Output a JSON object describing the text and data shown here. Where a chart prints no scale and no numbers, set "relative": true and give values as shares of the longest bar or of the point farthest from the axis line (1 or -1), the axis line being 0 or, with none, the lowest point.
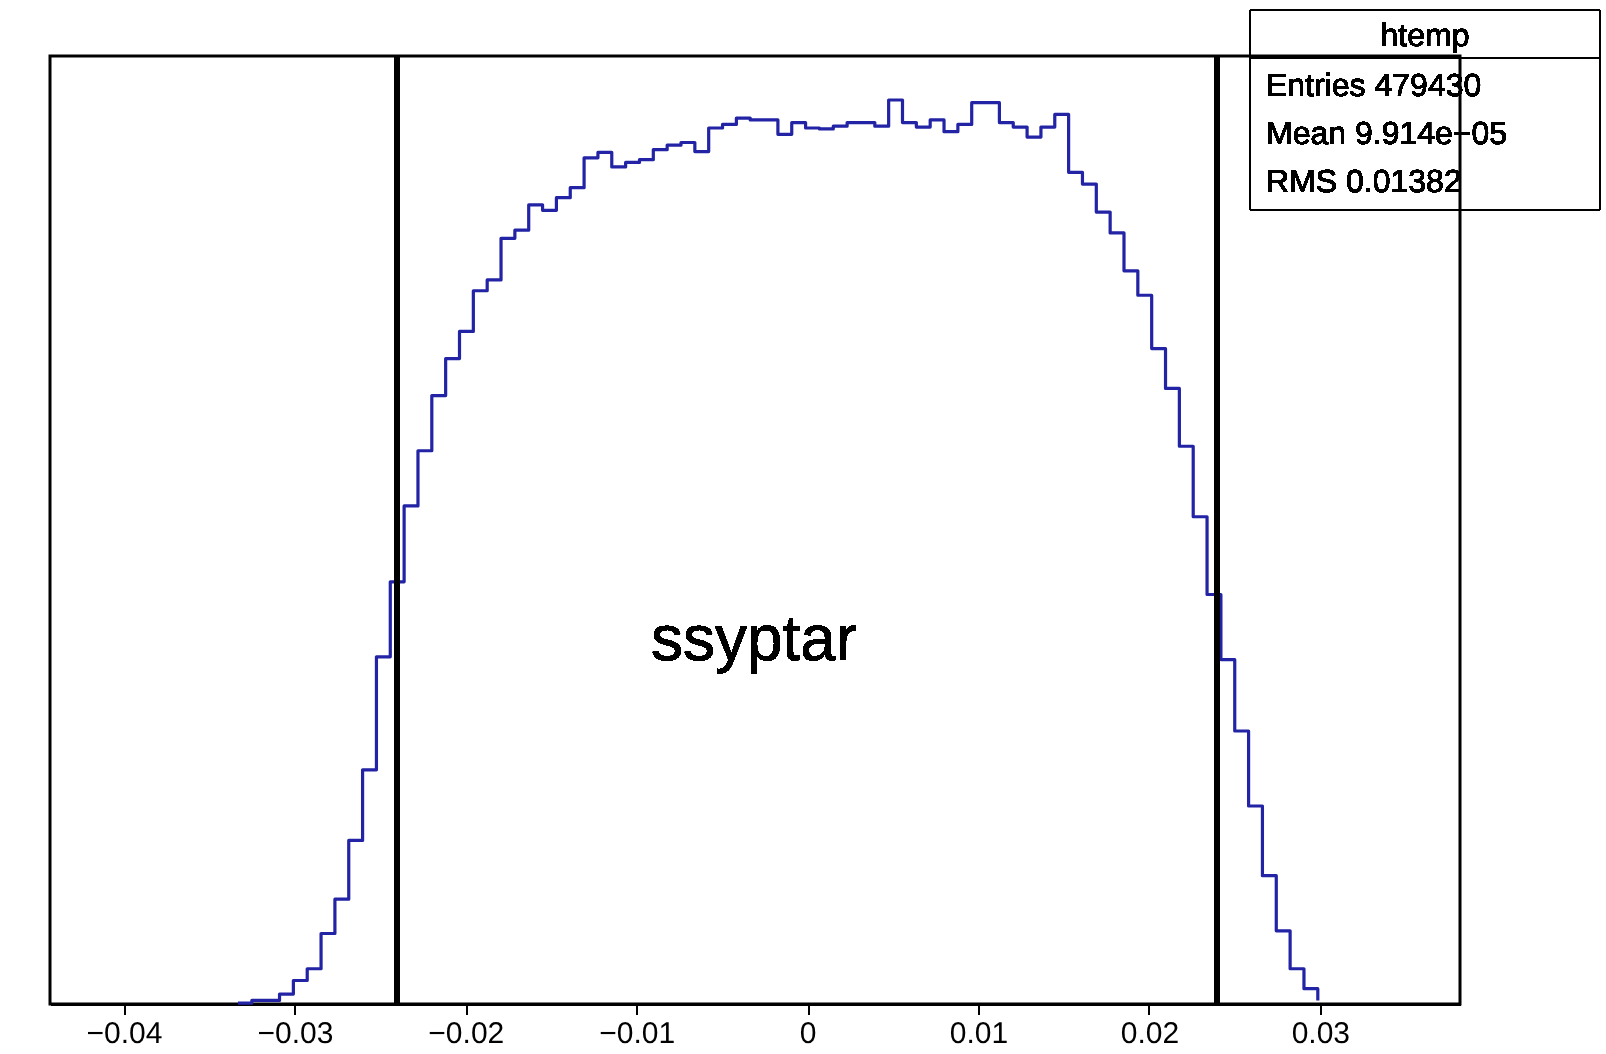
{
  "chart_data": {
    "type": "step",
    "relative": true,
    "x": [
      -0.0333,
      -0.03249,
      -0.03168,
      -0.03087,
      -0.03006,
      -0.02925,
      -0.02844,
      -0.02763,
      -0.02682,
      -0.02601,
      -0.0252,
      -0.02439,
      -0.02358,
      -0.02277,
      -0.02196,
      -0.02115,
      -0.02034,
      -0.01953,
      -0.01872,
      -0.01791,
      -0.0171,
      -0.01629,
      -0.01548,
      -0.01467,
      -0.01386,
      -0.01305,
      -0.01224,
      -0.01143,
      -0.01062,
      -0.00981,
      -0.009,
      -0.00819,
      -0.00738,
      -0.00657,
      -0.00576,
      -0.00495,
      -0.00414,
      -0.00333,
      -0.00252,
      -0.00171,
      -0.0009,
      -9e-05,
      0.00072,
      0.00153,
      0.00234,
      0.00315,
      0.00396,
      0.00477,
      0.00558,
      0.00639,
      0.0072,
      0.00801,
      0.00882,
      0.00963,
      0.01044,
      0.01125,
      0.01206,
      0.01287,
      0.01368,
      0.01449,
      0.0153,
      0.01611,
      0.01692,
      0.01773,
      0.01854,
      0.01935,
      0.02016,
      0.02097,
      0.02178,
      0.02259,
      0.0234,
      0.02421,
      0.02502,
      0.02583,
      0.02664,
      0.02745,
      0.02826,
      0.02907,
      0.02988
    ],
    "values": [
      0.001,
      0.004,
      0.004,
      0.011,
      0.026,
      0.039,
      0.078,
      0.116,
      0.181,
      0.259,
      0.384,
      0.467,
      0.551,
      0.612,
      0.673,
      0.714,
      0.744,
      0.789,
      0.801,
      0.847,
      0.856,
      0.884,
      0.878,
      0.892,
      0.903,
      0.936,
      0.942,
      0.926,
      0.931,
      0.934,
      0.945,
      0.95,
      0.953,
      0.943,
      0.969,
      0.973,
      0.98,
      0.978,
      0.978,
      0.962,
      0.975,
      0.969,
      0.968,
      0.971,
      0.975,
      0.975,
      0.971,
      1.0,
      0.975,
      0.97,
      0.978,
      0.965,
      0.973,
      0.997,
      0.997,
      0.975,
      0.97,
      0.959,
      0.97,
      0.984,
      0.92,
      0.907,
      0.876,
      0.853,
      0.811,
      0.784,
      0.725,
      0.681,
      0.617,
      0.539,
      0.453,
      0.381,
      0.302,
      0.219,
      0.142,
      0.081,
      0.039,
      0.017,
      0.004
    ],
    "color": "#2323a5",
    "xlim": [
      -0.0443,
      0.0382
    ],
    "xticks": [
      -0.04,
      -0.03,
      -0.02,
      -0.01,
      0,
      0.01,
      0.02,
      0.03
    ],
    "ref_lines": [
      {
        "axis": "x",
        "value": -0.024,
        "color": "#000000"
      },
      {
        "axis": "x",
        "value": 0.024,
        "color": "#000000"
      }
    ],
    "annotations": [
      "ssyptar",
      "htemp",
      "Entries 479430",
      "Mean 9.914e−05",
      "RMS 0.01382"
    ],
    "grid": false
  }
}
